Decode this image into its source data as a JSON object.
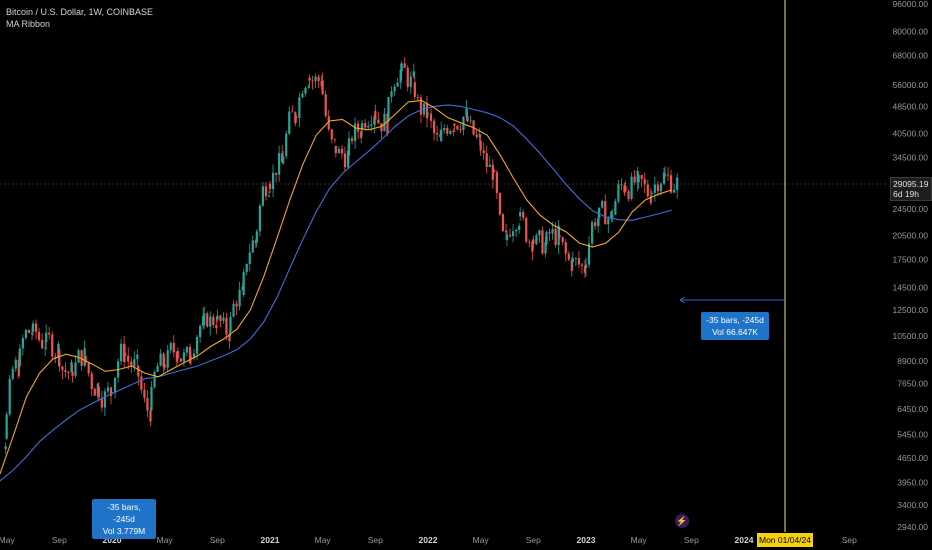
{
  "legend": {
    "symbol": "Bitcoin / U.S. Dollar, 1W, COINBASE",
    "indicator": "MA Ribbon"
  },
  "current_price": {
    "value": "29095.19",
    "countdown": "6d 19h"
  },
  "crosshair_date": "Mon 01/04/24",
  "measure_left": {
    "bars": "-35 bars, -245d",
    "vol": "Vol 3.779M"
  },
  "measure_right": {
    "bars": "-35 bars, -245d",
    "vol": "Vol 66.647K"
  },
  "flash_icon": "lightning-icon",
  "colors": {
    "up": "#26a69a",
    "down": "#ef5350",
    "ma_fast": "#f5a623",
    "ma_slow": "#3c6fd8",
    "crosshair": "#e8e48a",
    "measure": "#1f73c8"
  },
  "chart_data": {
    "type": "candlestick",
    "scale": "log",
    "ylim": [
      2940,
      96000
    ],
    "y_ticks": [
      "96000.00",
      "80000.00",
      "68000.00",
      "56000.00",
      "48500.00",
      "40500.00",
      "34500.00",
      "24500.00",
      "20500.00",
      "17500.00",
      "14500.00",
      "12500.00",
      "10500.00",
      "8900.00",
      "7650.00",
      "6450.00",
      "5450.00",
      "4650.00",
      "3950.00",
      "3400.00",
      "2940.00"
    ],
    "x_ticks": [
      "May",
      "Sep",
      "2020",
      "May",
      "Sep",
      "2021",
      "May",
      "Sep",
      "2022",
      "May",
      "Sep",
      "2023",
      "May",
      "Sep",
      "2024",
      "May",
      "Sep"
    ],
    "series": [
      {
        "name": "Bitcoin / U.S. Dollar",
        "type": "candles",
        "x": [
          "2019-03",
          "2019-04",
          "2019-05",
          "2019-06",
          "2019-07",
          "2019-08",
          "2019-09",
          "2019-10",
          "2019-11",
          "2019-12",
          "2020-01",
          "2020-02",
          "2020-03",
          "2020-04",
          "2020-05",
          "2020-06",
          "2020-07",
          "2020-08",
          "2020-09",
          "2020-10",
          "2020-11",
          "2020-12",
          "2021-01",
          "2021-02",
          "2021-03",
          "2021-04",
          "2021-05",
          "2021-06",
          "2021-07",
          "2021-08",
          "2021-09",
          "2021-10",
          "2021-11",
          "2021-12",
          "2022-01",
          "2022-02",
          "2022-03",
          "2022-04",
          "2022-05",
          "2022-06",
          "2022-07",
          "2022-08",
          "2022-09",
          "2022-10",
          "2022-11",
          "2022-12",
          "2023-01",
          "2023-02",
          "2023-03",
          "2023-04",
          "2023-05",
          "2023-06",
          "2023-07"
        ],
        "close": [
          4100,
          5300,
          8600,
          10800,
          10100,
          9600,
          8300,
          9200,
          7500,
          7200,
          9400,
          8600,
          6400,
          8700,
          9500,
          9150,
          11300,
          11700,
          10800,
          13800,
          19600,
          29000,
          33100,
          45200,
          58700,
          57700,
          37300,
          35000,
          41500,
          47100,
          43800,
          61300,
          57000,
          46200,
          38500,
          43200,
          45500,
          38600,
          31800,
          19900,
          23300,
          20000,
          19400,
          20500,
          17200,
          16550,
          23100,
          23150,
          28500,
          29250,
          27200,
          30450,
          29095
        ]
      },
      {
        "name": "MA Ribbon fast",
        "type": "line",
        "values": [
          3900,
          4200,
          5400,
          7000,
          8200,
          9000,
          9300,
          9100,
          8700,
          8300,
          8400,
          8600,
          8200,
          8000,
          8400,
          8800,
          9200,
          9800,
          10300,
          11000,
          12500,
          15500,
          20000,
          26000,
          33000,
          40000,
          44000,
          44500,
          42000,
          41500,
          42500,
          46000,
          50000,
          50500,
          48000,
          45000,
          43500,
          42000,
          40000,
          35000,
          30000,
          26000,
          23500,
          22000,
          21000,
          19500,
          19000,
          19500,
          21000,
          24000,
          26000,
          27000,
          27800
        ]
      },
      {
        "name": "MA Ribbon slow",
        "type": "line",
        "values": [
          3800,
          4000,
          4300,
          4700,
          5200,
          5600,
          6000,
          6400,
          6700,
          7000,
          7300,
          7600,
          7900,
          8000,
          8200,
          8400,
          8600,
          8900,
          9200,
          9600,
          10300,
          11500,
          13500,
          16500,
          20000,
          24000,
          28000,
          31000,
          33500,
          36000,
          39000,
          42500,
          45500,
          47500,
          48500,
          49000,
          48500,
          47500,
          46500,
          45000,
          42500,
          39000,
          35500,
          32000,
          28800,
          26200,
          24200,
          23200,
          22800,
          22700,
          23200,
          23700,
          24300
        ]
      }
    ]
  }
}
